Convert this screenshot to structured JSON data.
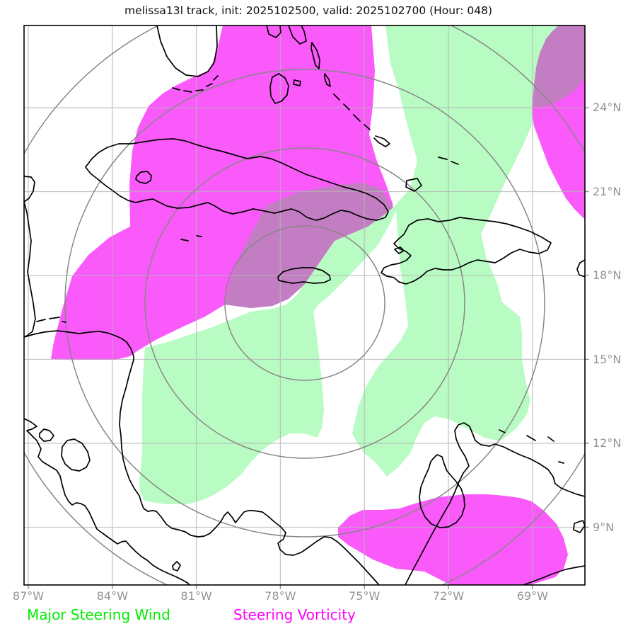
{
  "title": "melissa13l track, init: 2025102500, valid: 2025102700 (Hour: 048)",
  "axes": {
    "x_ticks": [
      "87°W",
      "84°W",
      "81°W",
      "78°W",
      "75°W",
      "72°W",
      "69°W"
    ],
    "y_ticks": [
      "24°N",
      "21°N",
      "18°N",
      "15°N",
      "12°N",
      "9°N"
    ]
  },
  "legend": [
    {
      "label": "Major Steering Wind",
      "color": "#00ee00"
    },
    {
      "label": "Steering Vorticity",
      "color": "#ff00ff"
    }
  ],
  "colors": {
    "steering_wind_fill": "#b9fcc3",
    "steering_vorticity_fill": "#fa5afa",
    "overlap_fill": "#c37ec3",
    "grid": "#b4b4b4",
    "range_rings": "#878787",
    "coastline": "#000000",
    "tick_text": "#949494"
  },
  "map_data": {
    "extent": {
      "west": "87°W",
      "east": "69°W",
      "south": "9°N",
      "north": "24°N"
    },
    "range_ring_count": 4,
    "features": [
      "florida",
      "bahamas",
      "cuba",
      "isla-de-la-juventud",
      "cayman-islands",
      "jamaica",
      "hispaniola",
      "puerto-rico",
      "yucatan",
      "belize-coast",
      "honduras-nicaragua-coast",
      "costa-rica-panama-coast",
      "pacific-coast",
      "lake-nicaragua",
      "lake-managua",
      "colombia-venezuela-coast",
      "lake-maracaibo",
      "antilles-islets",
      "trinidad"
    ]
  }
}
